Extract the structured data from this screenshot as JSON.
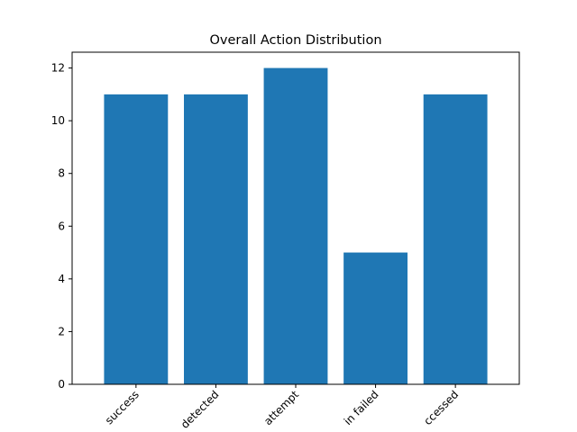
{
  "chart_data": {
    "type": "bar",
    "title": "Overall Action Distribution",
    "xlabel": "",
    "ylabel": "",
    "categories": [
      "success",
      "detected",
      "attempt",
      "in failed",
      "ccessed"
    ],
    "values": [
      11,
      11,
      12,
      5,
      11
    ],
    "ylim": [
      0,
      12.6
    ],
    "yticks": [
      0,
      2,
      4,
      6,
      8,
      10,
      12
    ],
    "bar_color": "#1f77b4",
    "grid": false,
    "legend": "none"
  }
}
